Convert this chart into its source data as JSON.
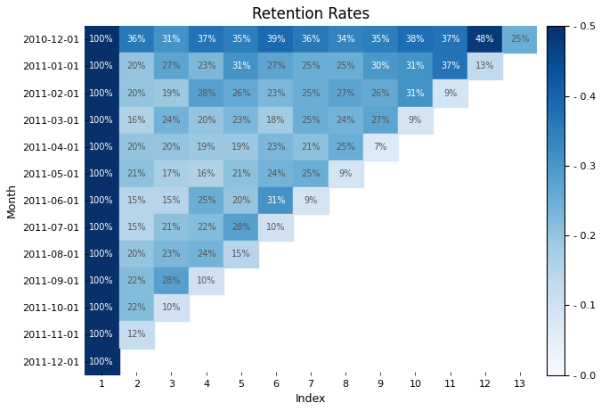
{
  "title": "Retention Rates",
  "xlabel": "Index",
  "ylabel": "Month",
  "row_labels": [
    "2010-12-01",
    "2011-01-01",
    "2011-02-01",
    "2011-03-01",
    "2011-04-01",
    "2011-05-01",
    "2011-06-01",
    "2011-07-01",
    "2011-08-01",
    "2011-09-01",
    "2011-10-01",
    "2011-11-01",
    "2011-12-01"
  ],
  "col_labels": [
    "1",
    "2",
    "3",
    "4",
    "5",
    "6",
    "7",
    "8",
    "9",
    "10",
    "11",
    "12",
    "13"
  ],
  "data": [
    [
      1.0,
      0.36,
      0.31,
      0.37,
      0.35,
      0.39,
      0.36,
      0.34,
      0.35,
      0.38,
      0.37,
      0.48,
      0.25
    ],
    [
      1.0,
      0.2,
      0.27,
      0.23,
      0.31,
      0.27,
      0.25,
      0.25,
      0.3,
      0.31,
      0.37,
      0.13,
      null
    ],
    [
      1.0,
      0.2,
      0.19,
      0.28,
      0.26,
      0.23,
      0.25,
      0.27,
      0.26,
      0.31,
      0.09,
      null,
      null
    ],
    [
      1.0,
      0.16,
      0.24,
      0.2,
      0.23,
      0.18,
      0.25,
      0.24,
      0.27,
      0.09,
      null,
      null,
      null
    ],
    [
      1.0,
      0.2,
      0.2,
      0.19,
      0.19,
      0.23,
      0.21,
      0.25,
      0.07,
      null,
      null,
      null,
      null
    ],
    [
      1.0,
      0.21,
      0.17,
      0.16,
      0.21,
      0.24,
      0.25,
      0.09,
      null,
      null,
      null,
      null,
      null
    ],
    [
      1.0,
      0.15,
      0.15,
      0.25,
      0.2,
      0.31,
      0.09,
      null,
      null,
      null,
      null,
      null,
      null
    ],
    [
      1.0,
      0.15,
      0.21,
      0.22,
      0.28,
      0.1,
      null,
      null,
      null,
      null,
      null,
      null,
      null
    ],
    [
      1.0,
      0.2,
      0.23,
      0.24,
      0.15,
      null,
      null,
      null,
      null,
      null,
      null,
      null,
      null
    ],
    [
      1.0,
      0.22,
      0.28,
      0.1,
      null,
      null,
      null,
      null,
      null,
      null,
      null,
      null,
      null
    ],
    [
      1.0,
      0.22,
      0.1,
      null,
      null,
      null,
      null,
      null,
      null,
      null,
      null,
      null,
      null
    ],
    [
      1.0,
      0.12,
      null,
      null,
      null,
      null,
      null,
      null,
      null,
      null,
      null,
      null,
      null
    ],
    [
      1.0,
      null,
      null,
      null,
      null,
      null,
      null,
      null,
      null,
      null,
      null,
      null,
      null
    ]
  ],
  "labels": [
    [
      "100%",
      "36%",
      "31%",
      "37%",
      "35%",
      "39%",
      "36%",
      "34%",
      "35%",
      "38%",
      "37%",
      "48%",
      "25%"
    ],
    [
      "100%",
      "20%",
      "27%",
      "23%",
      "31%",
      "27%",
      "25%",
      "25%",
      "30%",
      "31%",
      "37%",
      "13%",
      ""
    ],
    [
      "100%",
      "20%",
      "19%",
      "28%",
      "26%",
      "23%",
      "25%",
      "27%",
      "26%",
      "31%",
      "9%",
      "",
      ""
    ],
    [
      "100%",
      "16%",
      "24%",
      "20%",
      "23%",
      "18%",
      "25%",
      "24%",
      "27%",
      "9%",
      "",
      "",
      ""
    ],
    [
      "100%",
      "20%",
      "20%",
      "19%",
      "19%",
      "23%",
      "21%",
      "25%",
      "7%",
      "",
      "",
      "",
      ""
    ],
    [
      "100%",
      "21%",
      "17%",
      "16%",
      "21%",
      "24%",
      "25%",
      "9%",
      "",
      "",
      "",
      "",
      ""
    ],
    [
      "100%",
      "15%",
      "15%",
      "25%",
      "20%",
      "31%",
      "9%",
      "",
      "",
      "",
      "",
      "",
      ""
    ],
    [
      "100%",
      "15%",
      "21%",
      "22%",
      "28%",
      "10%",
      "",
      "",
      "",
      "",
      "",
      "",
      ""
    ],
    [
      "100%",
      "20%",
      "23%",
      "24%",
      "15%",
      "",
      "",
      "",
      "",
      "",
      "",
      "",
      ""
    ],
    [
      "100%",
      "22%",
      "28%",
      "10%",
      "",
      "",
      "",
      "",
      "",
      "",
      "",
      "",
      ""
    ],
    [
      "100%",
      "22%",
      "10%",
      "",
      "",
      "",
      "",
      "",
      "",
      "",
      "",
      "",
      ""
    ],
    [
      "100%",
      "12%",
      "",
      "",
      "",
      "",
      "",
      "",
      "",
      "",
      "",
      "",
      ""
    ],
    [
      "100%",
      "",
      "",
      "",
      "",
      "",
      "",
      "",
      "",
      "",
      "",
      "",
      ""
    ]
  ],
  "cmap": "Blues",
  "vmin": 0.0,
  "vmax": 0.5,
  "figsize": [
    6.75,
    4.61
  ],
  "dpi": 100,
  "background_color": "#ffffff",
  "text_threshold": 0.45
}
